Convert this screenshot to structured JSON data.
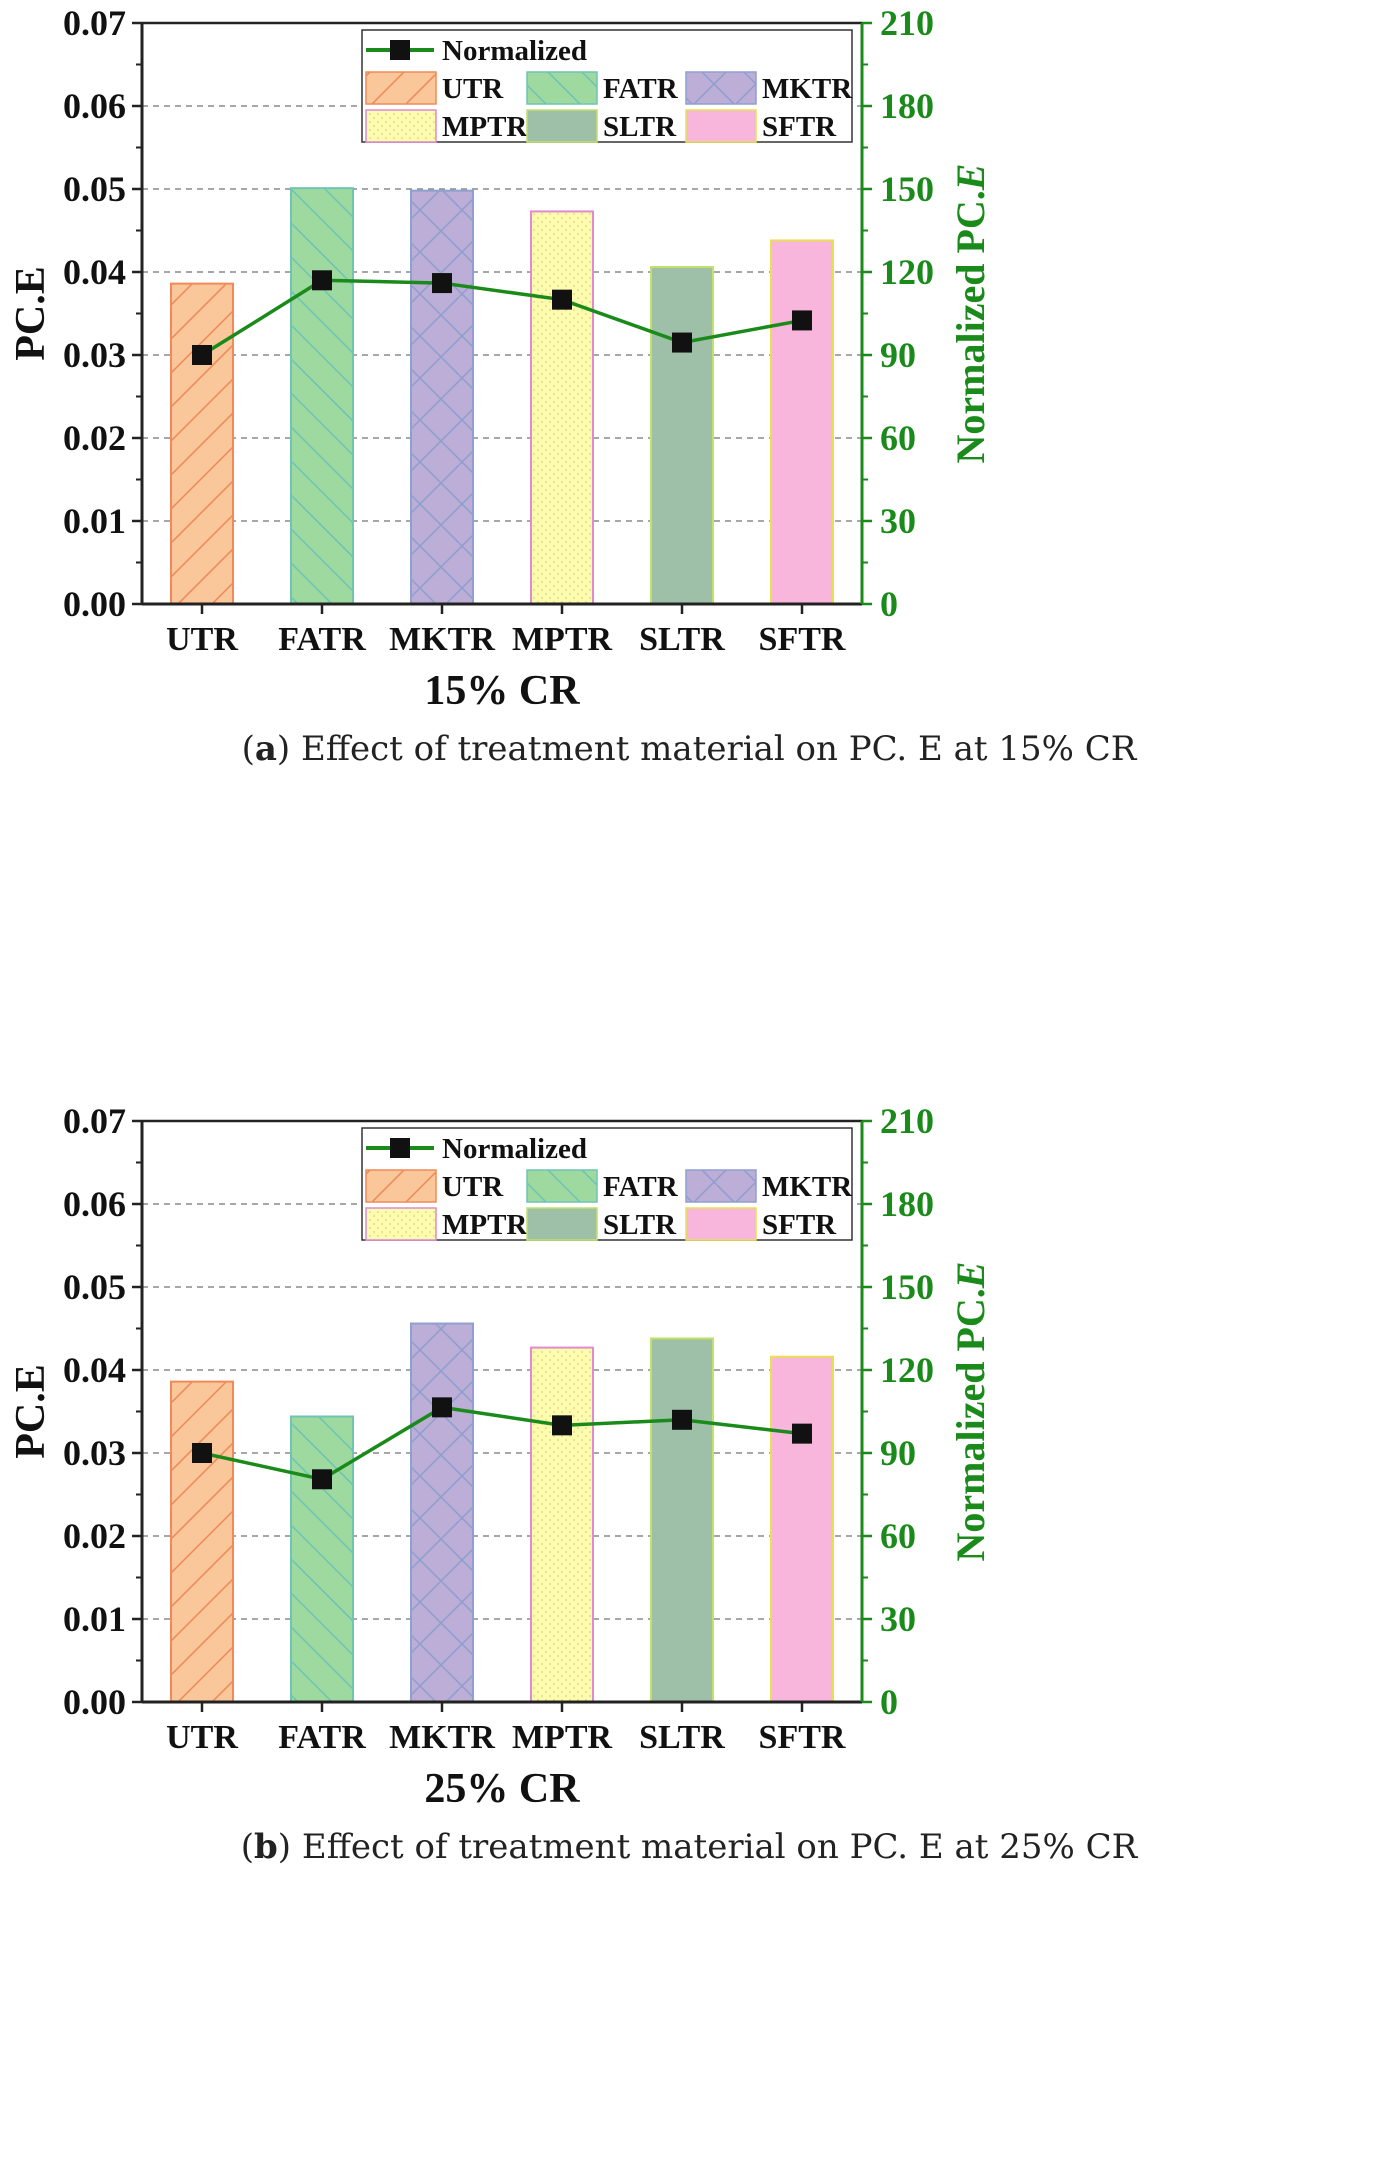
{
  "chart_data": [
    {
      "type": "bar",
      "panel": "a",
      "categories": [
        "UTR",
        "FATR",
        "MKTR",
        "MPTR",
        "SLTR",
        "SFTR"
      ],
      "series": [
        {
          "name": "PC.E",
          "axis": "left",
          "values": [
            0.0386,
            0.0501,
            0.0498,
            0.0473,
            0.0406,
            0.0438
          ]
        },
        {
          "name": "Normalized",
          "axis": "right",
          "type": "line",
          "values": [
            90,
            117,
            116,
            110,
            94.5,
            102.5
          ]
        }
      ],
      "xlabel": "15% CR",
      "ylabel": "PC.E",
      "ylabel2_prefix": "Normalized  ",
      "ylabel2_text": "PC.",
      "ylabel2_italic": "E",
      "ylim": [
        0,
        0.07
      ],
      "y2lim": [
        0,
        210
      ],
      "yticks": [
        "0.00",
        "0.01",
        "0.02",
        "0.03",
        "0.04",
        "0.05",
        "0.06",
        "0.07"
      ],
      "y2ticks": [
        "0",
        "30",
        "60",
        "90",
        "120",
        "150",
        "180",
        "210"
      ],
      "legend": {
        "position": "top-right",
        "line_label": "Normalized"
      },
      "caption_letter": "a",
      "caption_text": "Effect of treatment material on PC. E at 15% CR"
    },
    {
      "type": "bar",
      "panel": "b",
      "categories": [
        "UTR",
        "FATR",
        "MKTR",
        "MPTR",
        "SLTR",
        "SFTR"
      ],
      "series": [
        {
          "name": "PC.E",
          "axis": "left",
          "values": [
            0.0386,
            0.0344,
            0.0456,
            0.0427,
            0.0438,
            0.0416
          ]
        },
        {
          "name": "Normalized",
          "axis": "right",
          "type": "line",
          "values": [
            90,
            80.5,
            106.5,
            100,
            102,
            97
          ]
        }
      ],
      "xlabel": "25% CR",
      "ylabel": "PC.E",
      "ylabel2_prefix": "Normalized  ",
      "ylabel2_text": "PC.",
      "ylabel2_italic": "E",
      "ylim": [
        0,
        0.07
      ],
      "y2lim": [
        0,
        210
      ],
      "yticks": [
        "0.00",
        "0.01",
        "0.02",
        "0.03",
        "0.04",
        "0.05",
        "0.06",
        "0.07"
      ],
      "y2ticks": [
        "0",
        "30",
        "60",
        "90",
        "120",
        "150",
        "180",
        "210"
      ],
      "legend": {
        "position": "top-right",
        "line_label": "Normalized"
      },
      "caption_letter": "b",
      "caption_text": "Effect of treatment material on PC. E at 25% CR"
    }
  ],
  "colors": {
    "UTR": {
      "fill": "#f9c79a",
      "stroke": "#f08a5a",
      "pattern": "diag-up"
    },
    "FATR": {
      "fill": "#9ed9a0",
      "stroke": "#6fc4b4",
      "pattern": "diag-down"
    },
    "MKTR": {
      "fill": "#bcaed6",
      "stroke": "#8f9fd0",
      "pattern": "cross"
    },
    "MPTR": {
      "fill": "#fcfcb0",
      "stroke": "#e08ad0",
      "pattern": "dots"
    },
    "SLTR": {
      "fill": "#9ec0a8",
      "stroke": "#c2e06a",
      "pattern": "none"
    },
    "SFTR": {
      "fill": "#f9b6dc",
      "stroke": "#e8e050",
      "pattern": "none"
    },
    "line": "#1a8a1a",
    "right_axis": "#1a8a1a"
  }
}
